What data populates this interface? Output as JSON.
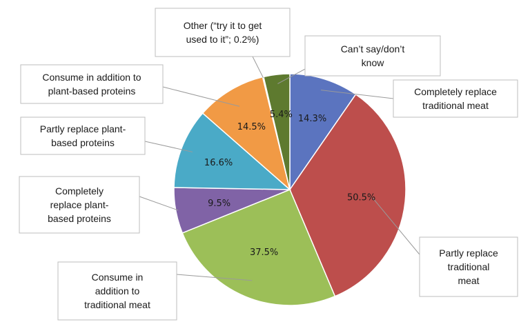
{
  "chart_data": {
    "type": "pie",
    "start_angle_deg": 0,
    "direction": "clockwise",
    "slices": [
      {
        "name": "Completely replace traditional meat",
        "value_label": "14.3%",
        "value": 14.3,
        "color": "#5b74bf"
      },
      {
        "name": "Partly replace traditional meat",
        "value_label": "50.5%",
        "value": 50.5,
        "color": "#bd4e4c"
      },
      {
        "name": "Consume in addition to traditional meat",
        "value_label": "37.5%",
        "value": 37.5,
        "color": "#9cbf58"
      },
      {
        "name": "Completely replace plant-based proteins",
        "value_label": "9.5%",
        "value": 9.5,
        "color": "#8063a6"
      },
      {
        "name": "Partly replace plant-based proteins",
        "value_label": "16.6%",
        "value": 16.6,
        "color": "#4aaac7"
      },
      {
        "name": "Consume in addition to plant-based proteins",
        "value_label": "14.5%",
        "value": 14.5,
        "color": "#f19a45"
      },
      {
        "name": "Other (“try it to get used to it”; 0.2%)",
        "value_label": "",
        "value": 0.2,
        "color": "#b8b8b8"
      },
      {
        "name": "Can’t say/don’t know",
        "value_label": "5.4%",
        "value": 5.4,
        "color": "#5e7a2f"
      }
    ],
    "callouts": [
      {
        "slice": 0,
        "lines": [
          "Completely replace",
          "traditional meat"
        ]
      },
      {
        "slice": 1,
        "lines": [
          "Partly replace",
          "traditional",
          "meat"
        ]
      },
      {
        "slice": 2,
        "lines": [
          "Consume in",
          "addition to",
          "traditional meat"
        ]
      },
      {
        "slice": 3,
        "lines": [
          "Completely",
          "replace plant-",
          "based proteins"
        ]
      },
      {
        "slice": 4,
        "lines": [
          "Partly replace plant-",
          "based proteins"
        ]
      },
      {
        "slice": 5,
        "lines": [
          "Consume in addition to",
          "plant-based proteins"
        ]
      },
      {
        "slice": 6,
        "lines": [
          "Other (“try it to get",
          "used to it”; 0.2%)"
        ]
      },
      {
        "slice": 7,
        "lines": [
          "Can’t say/don’t",
          "know"
        ]
      }
    ]
  }
}
